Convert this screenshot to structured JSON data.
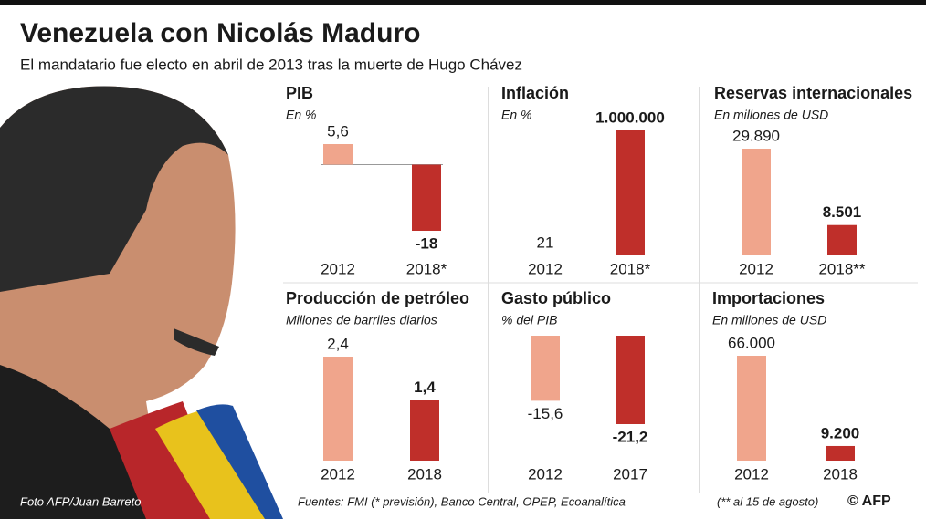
{
  "title": "Venezuela con Nicolás Maduro",
  "subtitle": "El mandatario fue electo en abril de 2013 tras la muerte de Hugo Chávez",
  "photo_credit": "Foto AFP/Juan Barreto",
  "source": "Fuentes: FMI (* previsión), Banco Central, OPEP, Ecoanalítica",
  "note": "(** al 15 de agosto)",
  "credit": "© AFP",
  "colors": [
    "#f0a58c",
    "#bf2f2a"
  ],
  "chart_data": [
    {
      "type": "bar",
      "title": "PIB",
      "subtitle": "En %",
      "categories": [
        "2012",
        "2018*"
      ],
      "values": [
        5.6,
        -18
      ],
      "value_labels": [
        "5,6",
        "-18"
      ]
    },
    {
      "type": "bar",
      "title": "Inflación",
      "subtitle": "En %",
      "categories": [
        "2012",
        "2018*"
      ],
      "values": [
        21,
        1000000
      ],
      "value_labels": [
        "21",
        "1.000.000"
      ]
    },
    {
      "type": "bar",
      "title": "Reservas internacionales",
      "subtitle": "En millones de USD",
      "categories": [
        "2012",
        "2018**"
      ],
      "values": [
        29890,
        8501
      ],
      "value_labels": [
        "29.890",
        "8.501"
      ]
    },
    {
      "type": "bar",
      "title": "Producción de petróleo",
      "subtitle": "Millones de barriles diarios",
      "categories": [
        "2012",
        "2018"
      ],
      "values": [
        2.4,
        1.4
      ],
      "value_labels": [
        "2,4",
        "1,4"
      ]
    },
    {
      "type": "bar",
      "title": "Gasto público",
      "subtitle": "% del PIB",
      "categories": [
        "2012",
        "2017"
      ],
      "values": [
        -15.6,
        -21.2
      ],
      "value_labels": [
        "-15,6",
        "-21,2"
      ]
    },
    {
      "type": "bar",
      "title": "Importaciones",
      "subtitle": "En millones de USD",
      "categories": [
        "2012",
        "2018"
      ],
      "values": [
        66000,
        9200
      ],
      "value_labels": [
        "66.000",
        "9.200"
      ]
    }
  ]
}
